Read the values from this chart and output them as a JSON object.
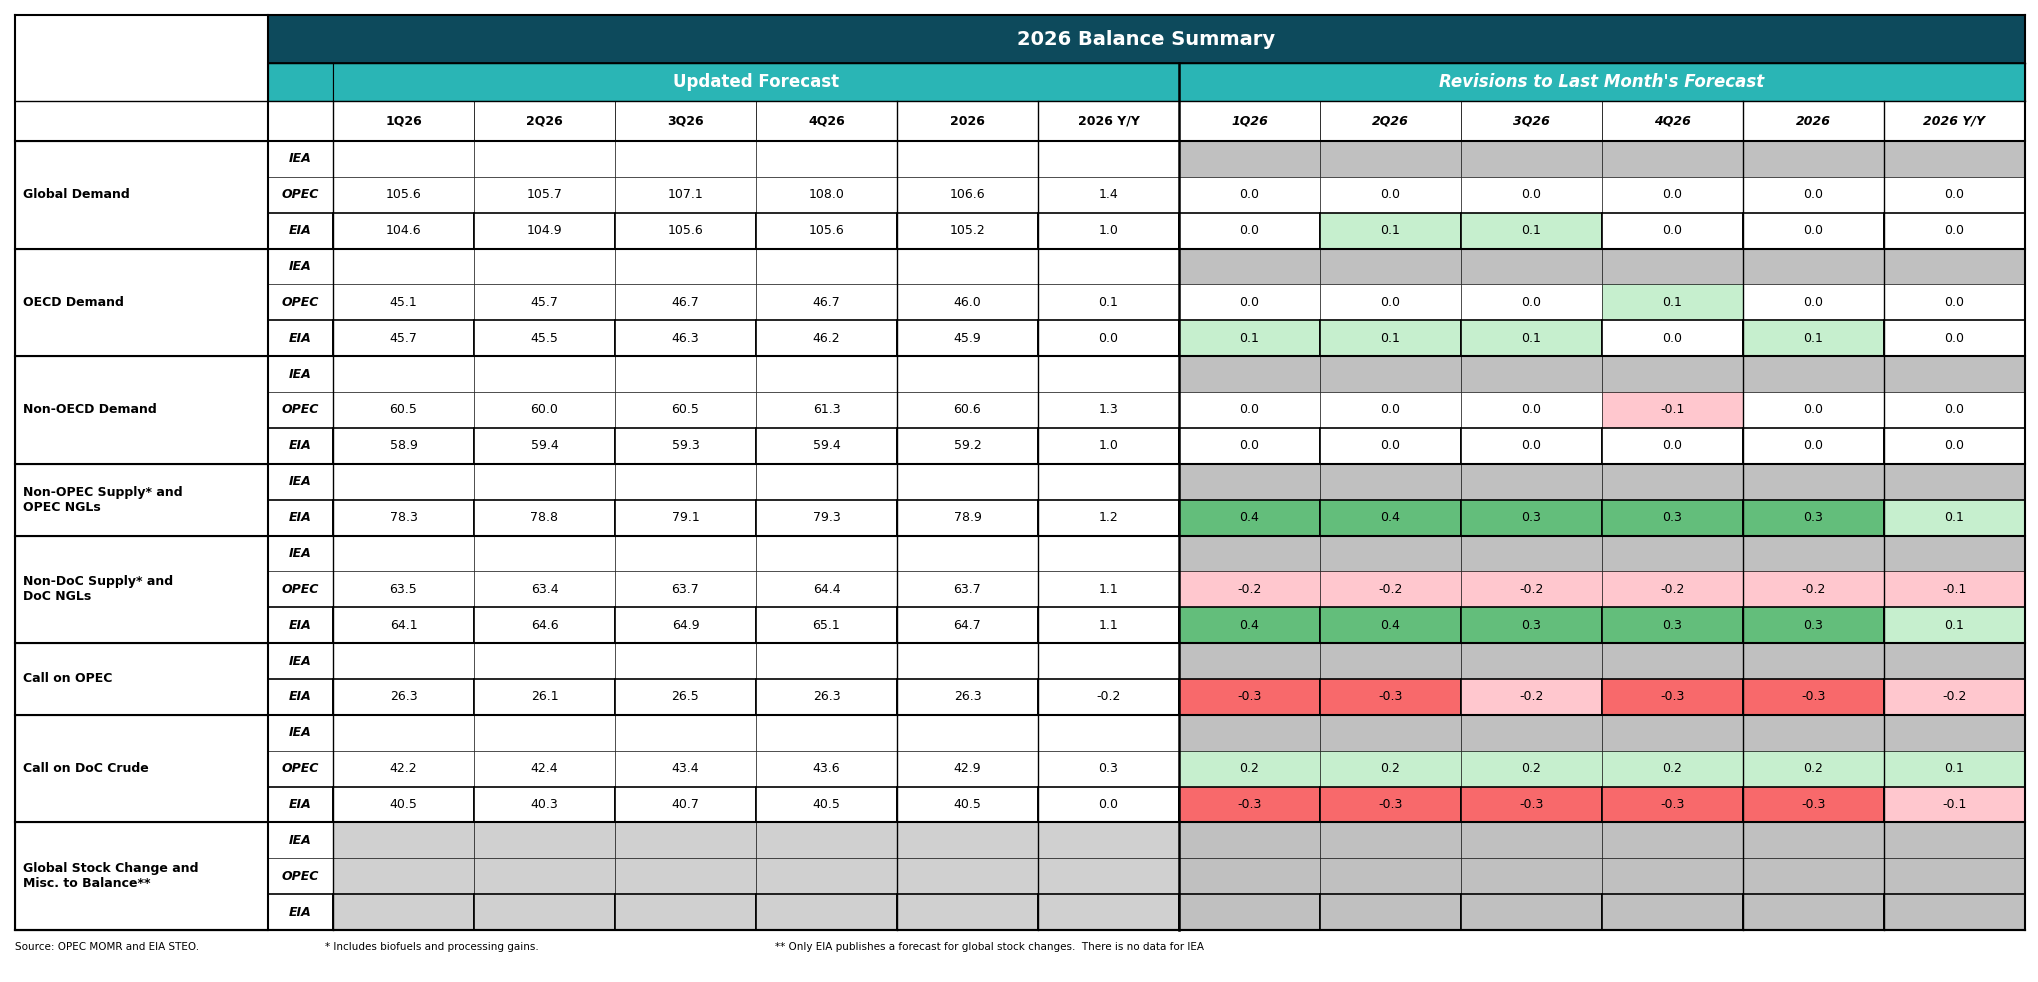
{
  "title": "2026 Balance Summary",
  "header1": "Updated Forecast",
  "header2": "Revisions to Last Month's Forecast",
  "col_headers": [
    "1Q26",
    "2Q26",
    "3Q26",
    "4Q26",
    "2026",
    "2026 Y/Y",
    "1Q26",
    "2Q26",
    "3Q26",
    "4Q26",
    "2026",
    "2026 Y/Y"
  ],
  "row_groups": [
    {
      "label": "Global Demand",
      "sources": [
        "IEA",
        "OPEC",
        "EIA"
      ],
      "forecast": [
        [
          null,
          null,
          null,
          null,
          null,
          null
        ],
        [
          105.6,
          105.7,
          107.1,
          108.0,
          106.6,
          1.4
        ],
        [
          104.6,
          104.9,
          105.6,
          105.6,
          105.2,
          1.0
        ]
      ],
      "revisions": [
        [
          null,
          null,
          null,
          null,
          null,
          null
        ],
        [
          0.0,
          0.0,
          0.0,
          0.0,
          0.0,
          0.0
        ],
        [
          0.0,
          0.1,
          0.1,
          0.0,
          0.0,
          0.0
        ]
      ]
    },
    {
      "label": "OECD Demand",
      "sources": [
        "IEA",
        "OPEC",
        "EIA"
      ],
      "forecast": [
        [
          null,
          null,
          null,
          null,
          null,
          null
        ],
        [
          45.1,
          45.7,
          46.7,
          46.7,
          46.0,
          0.1
        ],
        [
          45.7,
          45.5,
          46.3,
          46.2,
          45.9,
          0.0
        ]
      ],
      "revisions": [
        [
          null,
          null,
          null,
          null,
          null,
          null
        ],
        [
          0.0,
          0.0,
          0.0,
          0.1,
          0.0,
          0.0
        ],
        [
          0.1,
          0.1,
          0.1,
          0.0,
          0.1,
          0.0
        ]
      ]
    },
    {
      "label": "Non-OECD Demand",
      "sources": [
        "IEA",
        "OPEC",
        "EIA"
      ],
      "forecast": [
        [
          null,
          null,
          null,
          null,
          null,
          null
        ],
        [
          60.5,
          60.0,
          60.5,
          61.3,
          60.6,
          1.3
        ],
        [
          58.9,
          59.4,
          59.3,
          59.4,
          59.2,
          1.0
        ]
      ],
      "revisions": [
        [
          null,
          null,
          null,
          null,
          null,
          null
        ],
        [
          0.0,
          0.0,
          0.0,
          -0.1,
          0.0,
          0.0
        ],
        [
          0.0,
          0.0,
          0.0,
          0.0,
          0.0,
          0.0
        ]
      ]
    },
    {
      "label": "Non-OPEC Supply* and\nOPEC NGLs",
      "sources": [
        "IEA",
        "EIA"
      ],
      "forecast": [
        [
          null,
          null,
          null,
          null,
          null,
          null
        ],
        [
          78.3,
          78.8,
          79.1,
          79.3,
          78.9,
          1.2
        ]
      ],
      "revisions": [
        [
          null,
          null,
          null,
          null,
          null,
          null
        ],
        [
          0.4,
          0.4,
          0.3,
          0.3,
          0.3,
          0.1
        ]
      ]
    },
    {
      "label": "Non-DoC Supply* and\nDoC NGLs",
      "sources": [
        "IEA",
        "OPEC",
        "EIA"
      ],
      "forecast": [
        [
          null,
          null,
          null,
          null,
          null,
          null
        ],
        [
          63.5,
          63.4,
          63.7,
          64.4,
          63.7,
          1.1
        ],
        [
          64.1,
          64.6,
          64.9,
          65.1,
          64.7,
          1.1
        ]
      ],
      "revisions": [
        [
          null,
          null,
          null,
          null,
          null,
          null
        ],
        [
          -0.2,
          -0.2,
          -0.2,
          -0.2,
          -0.2,
          -0.1
        ],
        [
          0.4,
          0.4,
          0.3,
          0.3,
          0.3,
          0.1
        ]
      ]
    },
    {
      "label": "Call on OPEC",
      "sources": [
        "IEA",
        "EIA"
      ],
      "forecast": [
        [
          null,
          null,
          null,
          null,
          null,
          null
        ],
        [
          26.3,
          26.1,
          26.5,
          26.3,
          26.3,
          -0.2
        ]
      ],
      "revisions": [
        [
          null,
          null,
          null,
          null,
          null,
          null
        ],
        [
          -0.3,
          -0.3,
          -0.2,
          -0.3,
          -0.3,
          -0.2
        ]
      ]
    },
    {
      "label": "Call on DoC Crude",
      "sources": [
        "IEA",
        "OPEC",
        "EIA"
      ],
      "forecast": [
        [
          null,
          null,
          null,
          null,
          null,
          null
        ],
        [
          42.2,
          42.4,
          43.4,
          43.6,
          42.9,
          0.3
        ],
        [
          40.5,
          40.3,
          40.7,
          40.5,
          40.5,
          0.0
        ]
      ],
      "revisions": [
        [
          null,
          null,
          null,
          null,
          null,
          null
        ],
        [
          0.2,
          0.2,
          0.2,
          0.2,
          0.2,
          0.1
        ],
        [
          -0.3,
          -0.3,
          -0.3,
          -0.3,
          -0.3,
          -0.1
        ]
      ]
    },
    {
      "label": "Global Stock Change and\nMisc. to Balance**",
      "sources": [
        "IEA",
        "OPEC",
        "EIA"
      ],
      "forecast": [
        [
          null,
          null,
          null,
          null,
          null,
          null
        ],
        [
          null,
          null,
          null,
          null,
          null,
          null
        ],
        [
          null,
          null,
          null,
          null,
          null,
          null
        ]
      ],
      "revisions": [
        [
          null,
          null,
          null,
          null,
          null,
          null
        ],
        [
          null,
          null,
          null,
          null,
          null,
          null
        ],
        [
          null,
          null,
          null,
          null,
          null,
          null
        ]
      ]
    }
  ],
  "footer_text1": "Source: OPEC MOMR and EIA STEO.",
  "footer_text2": "* Includes biofuels and processing gains.",
  "footer_text3": "** Only EIA publishes a forecast for global stock changes.  There is no data for IEA",
  "colors": {
    "dark_teal": "#0d4a5c",
    "bright_teal": "#2ab5b5",
    "light_gray": "#d0d0d0",
    "white": "#ffffff",
    "strong_green": "#63be7b",
    "light_green": "#c6efce",
    "strong_red": "#f8696b",
    "light_red": "#ffc7ce",
    "gray_rev": "#c0c0c0"
  }
}
